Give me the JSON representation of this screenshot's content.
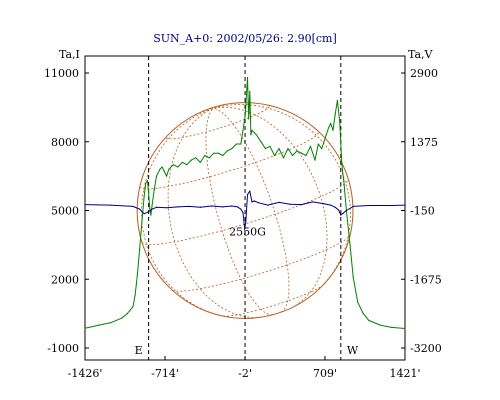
{
  "chart_data": {
    "type": "line",
    "title": "SUN_A+0: 2002/05/26: 2.90[cm]",
    "left_axis_label": "Ta,I",
    "right_axis_label": "Ta,V",
    "x_ticks": [
      "-1426'",
      "-714'",
      "-2'",
      "709'",
      "1421'"
    ],
    "xlim": [
      -1426,
      1421
    ],
    "left_ticks": [
      "11000",
      "8000",
      "5000",
      "2000",
      "-1000"
    ],
    "left_ylim": [
      -1000,
      11000
    ],
    "right_ticks": [
      "2900",
      "1375",
      "-150",
      "-1675",
      "-3200"
    ],
    "right_ylim": [
      -3200,
      2900
    ],
    "limb_markers": [
      {
        "label": "E",
        "x": -860
      },
      {
        "label": "W",
        "x": 850
      }
    ],
    "center_marker_x": -2,
    "annotation": {
      "text": "2550G",
      "x": 20,
      "y": 3900
    },
    "disk_grid": {
      "radius": 960,
      "center_x": -2,
      "center_y": 5000
    },
    "series": [
      {
        "name": "Ta,I",
        "axis": "left",
        "color": "#008000",
        "x": [
          -1426,
          -1300,
          -1200,
          -1100,
          -1050,
          -1000,
          -980,
          -960,
          -940,
          -920,
          -900,
          -885,
          -870,
          -860,
          -850,
          -840,
          -830,
          -810,
          -790,
          -760,
          -740,
          -720,
          -700,
          -680,
          -640,
          -600,
          -560,
          -520,
          -480,
          -440,
          -400,
          -360,
          -320,
          -280,
          -240,
          -200,
          -160,
          -120,
          -80,
          -40,
          -20,
          0,
          20,
          30,
          40,
          50,
          60,
          80,
          100,
          140,
          180,
          220,
          260,
          300,
          340,
          380,
          420,
          460,
          500,
          540,
          580,
          620,
          650,
          680,
          700,
          720,
          740,
          760,
          780,
          800,
          820,
          840,
          860,
          880,
          900,
          930,
          960,
          1000,
          1050,
          1100,
          1200,
          1300,
          1421
        ],
        "y": [
          -140,
          0,
          100,
          300,
          500,
          800,
          1300,
          2200,
          3300,
          4500,
          5600,
          6200,
          6300,
          5800,
          5100,
          4800,
          5200,
          5900,
          6500,
          6800,
          6900,
          6700,
          6500,
          6800,
          7000,
          6900,
          7100,
          7000,
          7200,
          7300,
          7100,
          7400,
          7300,
          7500,
          7500,
          7400,
          7600,
          7700,
          7900,
          7900,
          8500,
          9200,
          10800,
          9000,
          10200,
          8300,
          8500,
          8400,
          8300,
          8000,
          7700,
          7800,
          7400,
          7700,
          7300,
          7700,
          7400,
          7600,
          7500,
          7400,
          7800,
          7200,
          7900,
          7700,
          8000,
          8300,
          8600,
          8800,
          8500,
          9200,
          9800,
          8900,
          7000,
          6100,
          5000,
          3600,
          2100,
          1000,
          500,
          200,
          0,
          -100,
          -150
        ]
      },
      {
        "name": "Ta,V",
        "axis": "right",
        "color": "#000080",
        "x": [
          -1426,
          -1200,
          -1000,
          -940,
          -900,
          -860,
          -830,
          -790,
          -700,
          -600,
          -500,
          -400,
          -300,
          -200,
          -120,
          -70,
          -40,
          -20,
          -5,
          5,
          20,
          40,
          60,
          80,
          120,
          200,
          300,
          400,
          500,
          600,
          700,
          760,
          800,
          830,
          850,
          870,
          900,
          960,
          1100,
          1300,
          1421
        ],
        "y": [
          -20,
          -30,
          -60,
          -120,
          -220,
          -180,
          -120,
          -80,
          -90,
          -70,
          -60,
          -80,
          -50,
          -70,
          -50,
          -70,
          -120,
          -200,
          -560,
          -400,
          200,
          280,
          40,
          60,
          20,
          -30,
          30,
          -10,
          -20,
          40,
          0,
          -30,
          -80,
          -140,
          -250,
          -210,
          -150,
          -60,
          -40,
          -40,
          -30
        ]
      }
    ]
  }
}
